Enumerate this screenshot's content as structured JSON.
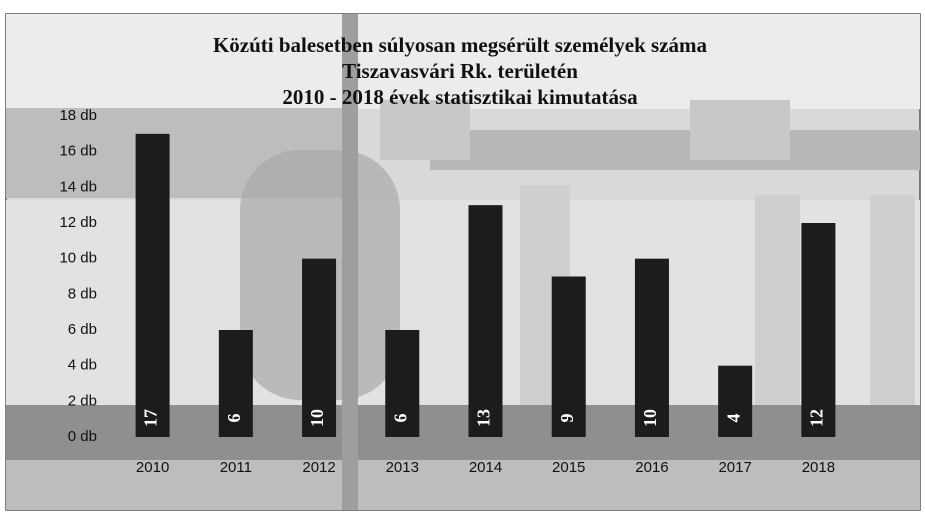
{
  "chart_data": {
    "type": "bar",
    "title": "Közúti balesetben súlyosan megsérült személyek száma",
    "subtitle": [
      "Tiszavasvári Rk. területén",
      "2010 - 2018 évek statisztikai kimutatása"
    ],
    "categories": [
      "2010",
      "2011",
      "2012",
      "2013",
      "2014",
      "2015",
      "2016",
      "2017",
      "2018"
    ],
    "values": [
      17,
      6,
      10,
      6,
      13,
      9,
      10,
      4,
      12
    ],
    "color": "#1c1c1c",
    "ylim": [
      0,
      18
    ],
    "yticks": [
      {
        "value": 0,
        "label": "0 db"
      },
      {
        "value": 2,
        "label": "2 db"
      },
      {
        "value": 4,
        "label": "4 db"
      },
      {
        "value": 6,
        "label": "6 db"
      },
      {
        "value": 8,
        "label": "8 db"
      },
      {
        "value": 10,
        "label": "10 db"
      },
      {
        "value": 12,
        "label": "12 db"
      },
      {
        "value": 14,
        "label": "14 db"
      },
      {
        "value": 16,
        "label": "16 db"
      },
      {
        "value": 18,
        "label": "18 db"
      }
    ],
    "grid": false
  }
}
